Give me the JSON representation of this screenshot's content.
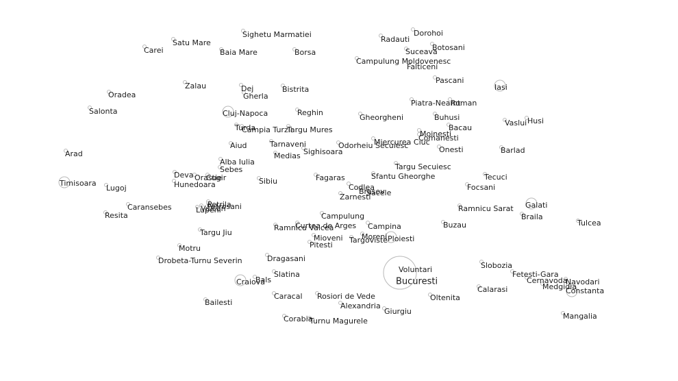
{
  "map": {
    "colors": {
      "background": "#ffffff",
      "marker_stroke": "#b8b8b8",
      "label": "#1a1a1a"
    },
    "cities": [
      {
        "name": "Sighetu Marmatiei",
        "size": "small"
      },
      {
        "name": "Dorohoi",
        "size": "small"
      },
      {
        "name": "Radauti",
        "size": "small"
      },
      {
        "name": "Satu Mare",
        "size": "small"
      },
      {
        "name": "Carei",
        "size": "small"
      },
      {
        "name": "Baia Mare",
        "size": "small"
      },
      {
        "name": "Borsa",
        "size": "small"
      },
      {
        "name": "Suceava",
        "size": "small"
      },
      {
        "name": "Botosani",
        "size": "small"
      },
      {
        "name": "Campulung Moldovenesc",
        "size": "small"
      },
      {
        "name": "Falticeni",
        "size": "small"
      },
      {
        "name": "Pascani",
        "size": "small"
      },
      {
        "name": "Iasi",
        "size": "medium"
      },
      {
        "name": "Zalau",
        "size": "small"
      },
      {
        "name": "Dej",
        "size": "small"
      },
      {
        "name": "Gherla",
        "size": "small"
      },
      {
        "name": "Bistrita",
        "size": "small"
      },
      {
        "name": "Oradea",
        "size": "small"
      },
      {
        "name": "Salonta",
        "size": "small"
      },
      {
        "name": "Cluj-Napoca",
        "size": "medium"
      },
      {
        "name": "Reghin",
        "size": "small"
      },
      {
        "name": "Gheorgheni",
        "size": "small"
      },
      {
        "name": "Piatra-Neamt",
        "size": "small"
      },
      {
        "name": "Roman",
        "size": "small"
      },
      {
        "name": "Buhusi",
        "size": "small"
      },
      {
        "name": "Vaslui",
        "size": "small"
      },
      {
        "name": "Husi",
        "size": "small"
      },
      {
        "name": "Bacau",
        "size": "small"
      },
      {
        "name": "Turda",
        "size": "small"
      },
      {
        "name": "Campia Turzii",
        "size": "small"
      },
      {
        "name": "Targu Mures",
        "size": "small"
      },
      {
        "name": "Moinesti",
        "size": "small"
      },
      {
        "name": "Comanesti",
        "size": "small"
      },
      {
        "name": "Miercurea Ciuc",
        "size": "small"
      },
      {
        "name": "Odorheiu Secuiesc",
        "size": "small"
      },
      {
        "name": "Aiud",
        "size": "small"
      },
      {
        "name": "Tarnaveni",
        "size": "small"
      },
      {
        "name": "Sighisoara",
        "size": "small"
      },
      {
        "name": "Medias",
        "size": "small"
      },
      {
        "name": "Onesti",
        "size": "small"
      },
      {
        "name": "Barlad",
        "size": "small"
      },
      {
        "name": "Arad",
        "size": "small"
      },
      {
        "name": "Alba Iulia",
        "size": "small"
      },
      {
        "name": "Sebes",
        "size": "small"
      },
      {
        "name": "Targu Secuiesc",
        "size": "small"
      },
      {
        "name": "Deva",
        "size": "small"
      },
      {
        "name": "Orastie",
        "size": "small"
      },
      {
        "name": "Cugir",
        "size": "small"
      },
      {
        "name": "Sfantu Gheorghe",
        "size": "small"
      },
      {
        "name": "Tecuci",
        "size": "small"
      },
      {
        "name": "Timisoara",
        "size": "medium"
      },
      {
        "name": "Hunedoara",
        "size": "small"
      },
      {
        "name": "Sibiu",
        "size": "small"
      },
      {
        "name": "Fagaras",
        "size": "small"
      },
      {
        "name": "Codlea",
        "size": "small"
      },
      {
        "name": "Brasov",
        "size": "small"
      },
      {
        "name": "Sacele",
        "size": "small"
      },
      {
        "name": "Lugoj",
        "size": "small"
      },
      {
        "name": "Focsani",
        "size": "small"
      },
      {
        "name": "Zarnesti",
        "size": "small"
      },
      {
        "name": "Galati",
        "size": "medium"
      },
      {
        "name": "Caransebes",
        "size": "small"
      },
      {
        "name": "Petrila",
        "size": "small"
      },
      {
        "name": "Petrosani",
        "size": "small"
      },
      {
        "name": "Vulcan",
        "size": "small"
      },
      {
        "name": "Lupeni",
        "size": "small"
      },
      {
        "name": "Ramnicu Sarat",
        "size": "small"
      },
      {
        "name": "Resita",
        "size": "small"
      },
      {
        "name": "Braila",
        "size": "small"
      },
      {
        "name": "Campulung",
        "size": "small"
      },
      {
        "name": "Tulcea",
        "size": "small"
      },
      {
        "name": "Curtea de Arges",
        "size": "small"
      },
      {
        "name": "Ramnicu Valcea",
        "size": "small"
      },
      {
        "name": "Campina",
        "size": "small"
      },
      {
        "name": "Buzau",
        "size": "small"
      },
      {
        "name": "Targu Jiu",
        "size": "small"
      },
      {
        "name": "Mioveni",
        "size": "small"
      },
      {
        "name": "Moreni",
        "size": "small"
      },
      {
        "name": "Targoviste",
        "size": "small"
      },
      {
        "name": "Ploiesti",
        "size": "medium"
      },
      {
        "name": "Pitesti",
        "size": "small"
      },
      {
        "name": "Motru",
        "size": "small"
      },
      {
        "name": "Dragasani",
        "size": "small"
      },
      {
        "name": "Drobeta-Turnu Severin",
        "size": "small"
      },
      {
        "name": "Slobozia",
        "size": "small"
      },
      {
        "name": "Voluntari",
        "size": "small"
      },
      {
        "name": "Fetesti-Gara",
        "size": "small"
      },
      {
        "name": "Slatina",
        "size": "small"
      },
      {
        "name": "Cernavoda",
        "size": "small"
      },
      {
        "name": "Bals",
        "size": "small"
      },
      {
        "name": "Navodari",
        "size": "small"
      },
      {
        "name": "Craiova",
        "size": "medium"
      },
      {
        "name": "Bucuresti",
        "size": "large"
      },
      {
        "name": "Medgidia",
        "size": "small"
      },
      {
        "name": "Calarasi",
        "size": "small"
      },
      {
        "name": "Constanta",
        "size": "medium"
      },
      {
        "name": "Caracal",
        "size": "small"
      },
      {
        "name": "Rosiori de Vede",
        "size": "small"
      },
      {
        "name": "Oltenita",
        "size": "small"
      },
      {
        "name": "Bailesti",
        "size": "small"
      },
      {
        "name": "Alexandria",
        "size": "small"
      },
      {
        "name": "Giurgiu",
        "size": "small"
      },
      {
        "name": "Mangalia",
        "size": "small"
      },
      {
        "name": "Corabia",
        "size": "small"
      },
      {
        "name": "Turnu Magurele",
        "size": "small"
      }
    ]
  }
}
